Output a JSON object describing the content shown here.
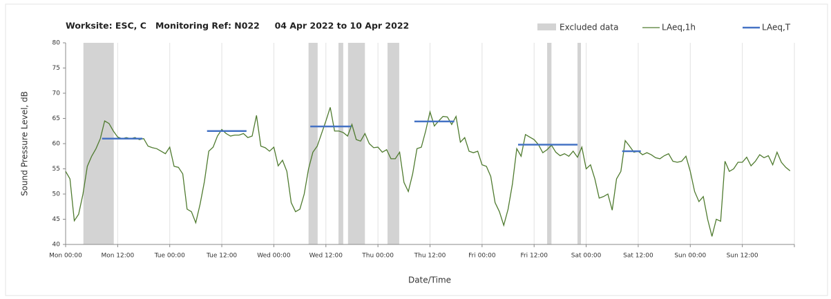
{
  "chart_data": {
    "type": "line",
    "title": "Worksite: ESC, C   Monitoring Ref: N022     04 Apr 2022 to 10 Apr 2022",
    "y_label": "Sound Pressure Level, dB",
    "x_label": "Date/Time",
    "xlim": [
      0,
      168
    ],
    "xticks": [
      {
        "value": 0,
        "label": "Mon 00:00"
      },
      {
        "value": 12,
        "label": "Mon 12:00"
      },
      {
        "value": 24,
        "label": "Tue 00:00"
      },
      {
        "value": 36,
        "label": "Tue 12:00"
      },
      {
        "value": 48,
        "label": "Wed 00:00"
      },
      {
        "value": 60,
        "label": "Wed 12:00"
      },
      {
        "value": 72,
        "label": "Thu 00:00"
      },
      {
        "value": 84,
        "label": "Thu 12:00"
      },
      {
        "value": 96,
        "label": "Fri 00:00"
      },
      {
        "value": 108,
        "label": "Fri 12:00"
      },
      {
        "value": 120,
        "label": "Sat 00:00"
      },
      {
        "value": 132,
        "label": "Sat 12:00"
      },
      {
        "value": 144,
        "label": "Sun 00:00"
      },
      {
        "value": 156,
        "label": "Sun 12:00"
      },
      {
        "value": 168,
        "label": ""
      }
    ],
    "ylim": [
      40,
      80
    ],
    "yticks": [
      40,
      45,
      50,
      55,
      60,
      65,
      70,
      75,
      80
    ],
    "grid": true,
    "x": [
      0,
      1,
      2,
      3,
      4,
      5,
      6,
      7,
      8,
      9,
      10,
      11,
      12,
      13,
      14,
      15,
      16,
      17,
      18,
      19,
      20,
      21,
      22,
      23,
      24,
      25,
      26,
      27,
      28,
      29,
      30,
      31,
      32,
      33,
      34,
      35,
      36,
      37,
      38,
      39,
      40,
      41,
      42,
      43,
      44,
      45,
      46,
      47,
      48,
      49,
      50,
      51,
      52,
      53,
      54,
      55,
      56,
      57,
      58,
      59,
      60,
      61,
      62,
      63,
      64,
      65,
      66,
      67,
      68,
      69,
      70,
      71,
      72,
      73,
      74,
      75,
      76,
      77,
      78,
      79,
      80,
      81,
      82,
      83,
      84,
      85,
      86,
      87,
      88,
      89,
      90,
      91,
      92,
      93,
      94,
      95,
      96,
      97,
      98,
      99,
      100,
      101,
      102,
      103,
      104,
      105,
      106,
      107,
      108,
      109,
      110,
      111,
      112,
      113,
      114,
      115,
      116,
      117,
      118,
      119,
      120,
      121,
      122,
      123,
      124,
      125,
      126,
      127,
      128,
      129,
      130,
      131,
      132,
      133,
      134,
      135,
      136,
      137,
      138,
      139,
      140,
      141,
      142,
      143,
      144,
      145,
      146,
      147,
      148,
      149,
      150,
      151,
      152,
      153,
      154,
      155,
      156,
      157,
      158,
      159,
      160,
      161,
      162,
      163,
      164,
      165,
      166,
      167
    ],
    "series": [
      {
        "name": "LAeq,1h",
        "color": "#4e7a2e",
        "values": [
          54.5,
          53,
          44.7,
          46,
          50,
          55.5,
          57.5,
          59,
          61,
          64.5,
          64,
          62.5,
          61.3,
          61,
          61.2,
          61,
          61.2,
          60.8,
          61,
          59.5,
          59.2,
          59,
          58.5,
          58,
          59.3,
          55.5,
          55.3,
          54,
          47,
          46.5,
          44.3,
          48,
          52.5,
          58.5,
          59.3,
          61.5,
          62.8,
          62,
          61.5,
          61.7,
          61.7,
          62,
          61.2,
          61.5,
          65.6,
          59.5,
          59.2,
          58.5,
          59.3,
          55.6,
          56.7,
          54.5,
          48.3,
          46.5,
          47,
          50,
          55,
          58.3,
          59.5,
          62,
          64.5,
          67.2,
          62.5,
          62.5,
          62.2,
          61.5,
          63.8,
          60.8,
          60.5,
          62,
          60,
          59.2,
          59.3,
          58.3,
          58.8,
          57,
          57,
          58.3,
          52.3,
          50.5,
          54,
          59,
          59.3,
          62.5,
          66.3,
          63.5,
          64.5,
          65.4,
          65.3,
          63.8,
          65.4,
          60.3,
          61.2,
          58.5,
          58.2,
          58.5,
          55.8,
          55.5,
          53.5,
          48.3,
          46.5,
          43.8,
          47,
          52,
          59,
          57.5,
          61.8,
          61.3,
          60.8,
          59.8,
          58.2,
          58.8,
          59.7,
          58.3,
          57.6,
          58,
          57.5,
          58.5,
          57.3,
          59.3,
          55,
          55.8,
          53,
          49.2,
          49.5,
          50,
          46.8,
          53,
          54.5,
          60.6,
          59.5,
          58.3,
          58.5,
          57.8,
          58.2,
          57.8,
          57.2,
          57,
          57.6,
          58,
          56.5,
          56.3,
          56.5,
          57.5,
          54.5,
          50.5,
          48.5,
          49.5,
          45,
          41.6,
          45,
          44.6,
          56.5,
          54.5,
          55,
          56.3,
          56.3,
          57.3,
          55.6,
          56.5,
          57.8,
          57.2,
          57.6,
          55.8,
          58.3,
          56.3,
          55.3,
          54.6
        ]
      }
    ],
    "excluded": {
      "name": "Excluded data",
      "color": "#d3d3d3",
      "ranges": [
        [
          4.1,
          11.1
        ],
        [
          56,
          58.1
        ],
        [
          62.9,
          64
        ],
        [
          65.1,
          69
        ],
        [
          74.2,
          76.9
        ],
        [
          111,
          112
        ],
        [
          118,
          118.8
        ]
      ]
    },
    "laeq_t": {
      "name": "LAeq,T",
      "color": "#4472c4",
      "segments": [
        {
          "start": 8.4,
          "end": 17.7,
          "value": 61
        },
        {
          "start": 32.6,
          "end": 41.7,
          "value": 62.5
        },
        {
          "start": 56.4,
          "end": 65.8,
          "value": 63.4
        },
        {
          "start": 80.4,
          "end": 89.6,
          "value": 64.4
        },
        {
          "start": 104.3,
          "end": 118,
          "value": 59.8
        },
        {
          "start": 128.3,
          "end": 132.6,
          "value": 58.5
        }
      ]
    }
  }
}
